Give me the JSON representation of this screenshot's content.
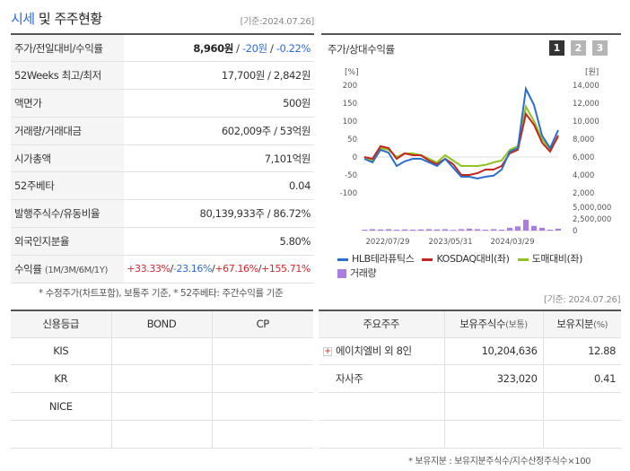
{
  "header": {
    "title_accent": "시세",
    "title_rest": " 및 주주현황",
    "base_date": "[기준:2024.07.26]"
  },
  "stock_table": {
    "rows": [
      {
        "label": "주가/전일대비/수익률",
        "value_main": "8,960원",
        "value_change": "-20원",
        "value_rate": "-0.22%"
      },
      {
        "label": "52Weeks 최고/최저",
        "value": "17,700원 / 2,842원"
      },
      {
        "label": "액면가",
        "value": "500원"
      },
      {
        "label": "거래량/거래대금",
        "value": "602,009주 / 53억원"
      },
      {
        "label": "시가총액",
        "value": "7,101억원"
      },
      {
        "label": "52주베타",
        "value": "0.04"
      },
      {
        "label": "발행주식수/유동비율",
        "value": "80,139,933주 / 86.72%"
      },
      {
        "label": "외국인지분율",
        "value": "5.80%"
      },
      {
        "label": "수익률",
        "label_sub": "(1M/3M/6M/1Y)",
        "r1": "+33.33%",
        "r2": "-23.16%",
        "r3": "+67.16%",
        "r4": "+155.71%"
      }
    ],
    "slash": "/"
  },
  "footnote": "* 수정주가(차트포함), 보통주 기준, * 52주베타: 주간수익률 기준",
  "chart_panel": {
    "title": "주가/상대수익률",
    "tabs": [
      "1",
      "2",
      "3"
    ],
    "active_tab": "1"
  },
  "chart_data": {
    "type": "line",
    "left_axis": {
      "unit": "[%]",
      "ticks": [
        200,
        150,
        100,
        50,
        0,
        -50,
        -100
      ],
      "range": [
        -100,
        200
      ]
    },
    "right_axis": {
      "unit": "[원]",
      "ticks": [
        "14,000",
        "12,000",
        "10,000",
        "8,000",
        "6,000",
        "4,000",
        "2,000"
      ],
      "range": [
        2000,
        14000
      ]
    },
    "volume_axis": {
      "ticks": [
        "5,000,000",
        "2,500,000",
        "0"
      ],
      "range": [
        0,
        5000000
      ]
    },
    "x_ticks": [
      "2022/07/29",
      "2023/05/31",
      "2024/03/29"
    ],
    "series": [
      {
        "name": "HLB테라퓨틱스",
        "color": "#2a6fd0",
        "values": [
          -5,
          -15,
          20,
          12,
          -25,
          -12,
          -5,
          -5,
          -15,
          -25,
          -5,
          -30,
          -55,
          -55,
          -60,
          -55,
          -52,
          -35,
          15,
          25,
          190,
          145,
          60,
          25,
          75
        ]
      },
      {
        "name": "KOSDAQ대비(좌)",
        "color": "#c4261f",
        "values": [
          0,
          -5,
          30,
          25,
          -5,
          10,
          5,
          5,
          -10,
          -20,
          -5,
          -20,
          -50,
          -50,
          -45,
          -35,
          -35,
          -25,
          10,
          20,
          120,
          90,
          40,
          15,
          60
        ]
      },
      {
        "name": "도매대비(좌)",
        "color": "#8fc31f",
        "values": [
          0,
          -10,
          25,
          20,
          0,
          10,
          10,
          5,
          -5,
          -15,
          5,
          -10,
          -25,
          -25,
          -25,
          -22,
          -15,
          -10,
          20,
          30,
          140,
          100,
          50,
          20,
          55
        ]
      }
    ],
    "volume": {
      "name": "거래량",
      "color": "#a97ee0",
      "values": [
        200000,
        300000,
        250000,
        300000,
        200000,
        250000,
        200000,
        250000,
        300000,
        250000,
        300000,
        150000,
        300000,
        400000,
        300000,
        200000,
        300000,
        200000,
        600000,
        900000,
        2300000,
        1000000,
        600000,
        200000,
        400000
      ]
    }
  },
  "legend": [
    "HLB테라퓨틱스",
    "KOSDAQ대비(좌)",
    "도매대비(좌)",
    "거래량"
  ],
  "base_date_2": "[기준: 2024.07.26]",
  "credit_table": {
    "headers": [
      "신용등급",
      "BOND",
      "CP"
    ],
    "rows": [
      [
        "KIS",
        "",
        ""
      ],
      [
        "KR",
        "",
        ""
      ],
      [
        "NICE",
        "",
        ""
      ],
      [
        "",
        "",
        ""
      ]
    ]
  },
  "holders_table": {
    "headers": [
      "주요주주",
      "보유주식수",
      "(보통)",
      "보유지분",
      "(%)"
    ],
    "rows": [
      {
        "name": "에이치엘비 외 8인",
        "shares": "10,204,636",
        "pct": "12.88"
      },
      {
        "name": "자사주",
        "shares": "323,020",
        "pct": "0.41"
      },
      {
        "name": "",
        "shares": "",
        "pct": ""
      },
      {
        "name": "",
        "shares": "",
        "pct": ""
      }
    ]
  },
  "footnote2": "* 보유지분 : 보유지분주식수/지수산정주식수×100"
}
